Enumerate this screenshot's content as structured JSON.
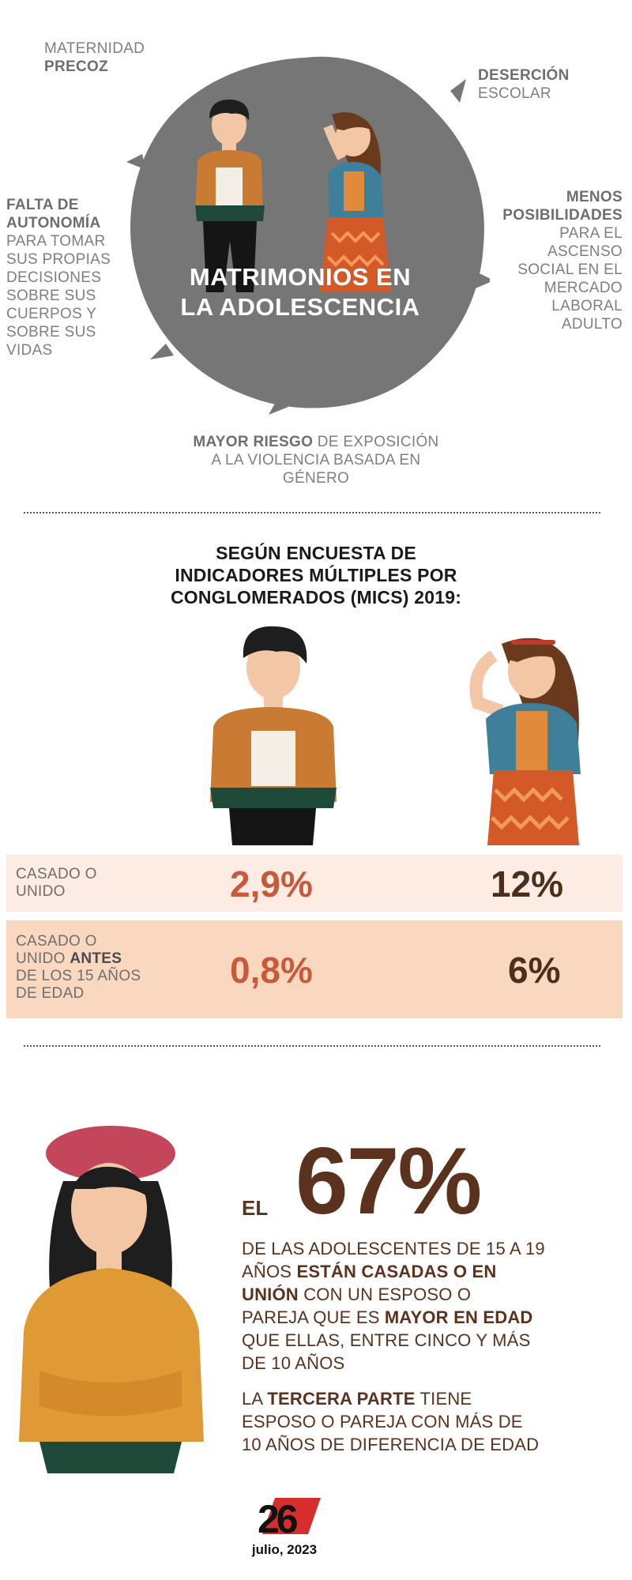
{
  "top": {
    "maternidad": {
      "line1": "MATERNIDAD",
      "line2": "PRECOZ"
    },
    "desercion": {
      "line1": "DESERCIÓN",
      "line2": "ESCOLAR"
    },
    "autonomia": {
      "bold1": "FALTA DE",
      "bold2": "AUTONOMÍA",
      "rest": [
        "PARA TOMAR",
        "SUS PROPIAS",
        "DECISIONES",
        "SOBRE SUS",
        "CUERPOS Y",
        "SOBRE SUS",
        "VIDAS"
      ]
    },
    "posibilidades": {
      "bold1": "MENOS",
      "bold2": "POSIBILIDADES",
      "rest": [
        "PARA EL",
        "ASCENSO",
        "SOCIAL EN EL",
        "MERCADO",
        "LABORAL",
        "ADULTO"
      ]
    },
    "blob_title": [
      "MATRIMONIOS EN",
      "LA ADOLESCENCIA"
    ],
    "riesgo": {
      "bold": "MAYOR RIESGO",
      "rest1": " DE EXPOSICIÓN",
      "line2": "A LA VIOLENCIA BASADA EN",
      "line3": "GÉNERO"
    }
  },
  "survey": {
    "title": [
      "SEGÚN ENCUESTA DE",
      "INDICADORES MÚLTIPLES POR",
      "CONGLOMERADOS (MICS) 2019:"
    ],
    "rows": [
      {
        "label_lines": [
          "CASADO O",
          "UNIDO"
        ],
        "male": "2,9%",
        "female": "12%"
      },
      {
        "label_a": "CASADO  O",
        "label_b_pre": "UNIDO ",
        "label_b_bold": "ANTES",
        "label_c": "DE LOS 15 AÑOS",
        "label_d": "DE EDAD",
        "male": "0,8%",
        "female": "6%"
      }
    ]
  },
  "stat": {
    "prefix": "EL",
    "number": "67%",
    "p1": {
      "l1": "DE LAS ADOLESCENTES DE 15 A 19",
      "l2a": "AÑOS ",
      "l2b": "ESTÁN CASADAS O EN",
      "l3a": "UNIÓN",
      "l3b": " CON UN ESPOSO O",
      "l4a": "PAREJA QUE ES ",
      "l4b": "MAYOR EN EDAD",
      "l5": "QUE ELLAS, ENTRE CINCO Y MÁS",
      "l6": "DE 10 AÑOS"
    },
    "p2": {
      "l1a": "LA ",
      "l1b": "TERCERA PARTE",
      "l1c": " TIENE",
      "l2": "ESPOSO O PAREJA CON MÁS DE",
      "l3": "10 AÑOS DE DIFERENCIA DE EDAD"
    }
  },
  "footer": {
    "logo_text": "26",
    "date": "julio, 2023"
  },
  "colors": {
    "blob": "#767676",
    "red": "#c85a3c",
    "brown": "#4b2e1c",
    "row1": "#fdece3",
    "row2": "#f9d8bf"
  }
}
